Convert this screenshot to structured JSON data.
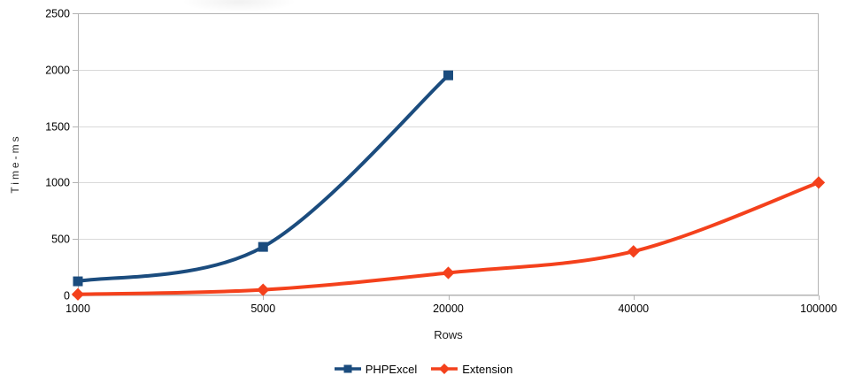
{
  "chart_data": {
    "type": "line",
    "title": "",
    "xlabel": "Rows",
    "ylabel": "Time-ms",
    "categories": [
      "1000",
      "5000",
      "20000",
      "40000",
      "100000"
    ],
    "series": [
      {
        "name": "PHPExcel",
        "marker": "square",
        "color": "#1B4C7E",
        "values": [
          125,
          430,
          1950,
          null,
          null
        ]
      },
      {
        "name": "Extension",
        "marker": "diamond",
        "color": "#F4411C",
        "values": [
          10,
          50,
          200,
          390,
          1000
        ]
      }
    ],
    "ylim": [
      0,
      2500
    ],
    "ytick_step": 500,
    "yticks": [
      "0",
      "500",
      "1000",
      "1500",
      "2000",
      "2500"
    ],
    "grid": "horizontal",
    "legend_position": "bottom-center",
    "smooth_lines": true
  },
  "style": {
    "background": "#ffffff",
    "gridline_color": "#d9d9d9",
    "frame_color": "#b3b3b3",
    "tick_color": "#b3b3b3",
    "tick_label_color": "#000000",
    "axis_title_color": "#2b2b2b",
    "line_width": 4
  }
}
